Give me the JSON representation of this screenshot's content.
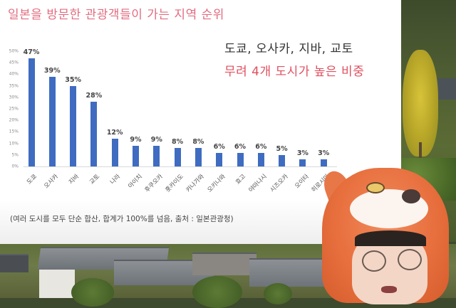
{
  "slide": {
    "title": "일본을 방문한 관광객들이 가는 지역 순위",
    "note_line1": "도쿄, 오사카, 지바, 교토",
    "note_line2": "무려 4개 도시가 높은 비중",
    "footnote": "(여러 도시를 모두 단순 합산, 합계가 100%를 넘음, 출처 : 일본관광청)"
  },
  "colors": {
    "title": "#e26d80",
    "highlight": "#e0505f",
    "bar": "#3f6cc0"
  },
  "chart_data": {
    "type": "bar",
    "title": "일본을 방문한 관광객들이 가는 지역 순위",
    "xlabel": "",
    "ylabel": "",
    "categories": [
      "도쿄",
      "오사카",
      "지바",
      "교토",
      "나라",
      "아이치",
      "후쿠오카",
      "홋카이도",
      "카나가와",
      "오키나와",
      "효고",
      "야마나시",
      "시즈오카",
      "오이타",
      "히로시마"
    ],
    "values": [
      47,
      39,
      35,
      28,
      12,
      9,
      9,
      8,
      8,
      6,
      6,
      6,
      5,
      3,
      3
    ],
    "value_labels": [
      "47%",
      "39%",
      "35%",
      "28%",
      "12%",
      "9%",
      "9%",
      "8%",
      "8%",
      "6%",
      "6%",
      "6%",
      "5%",
      "3%",
      "3%"
    ],
    "y_ticks": [
      "0%",
      "5%",
      "10%",
      "15%",
      "20%",
      "25%",
      "30%",
      "35%",
      "40%",
      "45%",
      "50%"
    ],
    "ylim": [
      0,
      50
    ],
    "grid": false,
    "legend": "none",
    "unit": "%"
  }
}
